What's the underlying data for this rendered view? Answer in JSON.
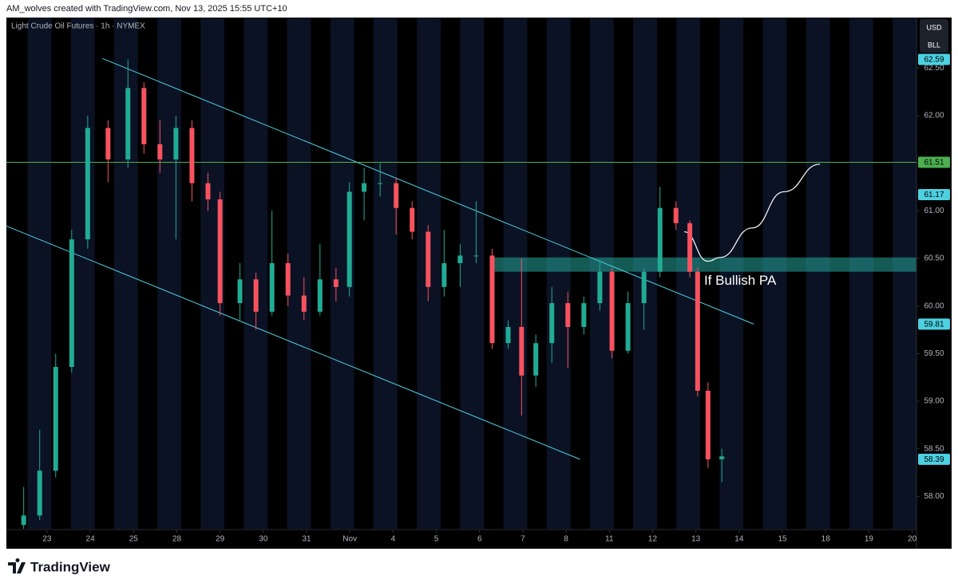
{
  "header": {
    "text": "AM_wolves created with TradingView.com, Nov 13, 2025 15:55 UTC+10"
  },
  "footer": {
    "brand": "TradingView"
  },
  "chart_data": {
    "type": "candlestick",
    "title": "Light Crude Oil Futures · 1h · NYMEX",
    "currency": "USD",
    "unit": "BLL",
    "x": [
      -0.54,
      -0.17,
      0.2,
      0.57,
      0.94,
      1.41,
      1.87,
      2.24,
      2.61,
      2.98,
      3.35,
      3.72,
      4.0,
      4.46,
      4.83,
      5.2,
      5.57,
      5.94,
      6.31,
      6.68,
      6.99,
      7.33,
      7.7,
      8.07,
      8.44,
      8.81,
      9.18,
      9.55,
      9.92,
      10.29,
      10.66,
      10.97,
      11.3,
      11.67,
      12.04,
      12.41,
      12.78,
      13.06,
      13.43,
      13.8,
      14.17,
      14.54,
      14.86,
      15.04,
      15.28,
      15.6
    ],
    "open": [
      57.7,
      57.8,
      58.27,
      59.36,
      60.7,
      61.87,
      61.54,
      62.29,
      61.7,
      61.54,
      61.87,
      61.29,
      61.12,
      60.03,
      60.28,
      59.94,
      60.45,
      60.11,
      59.94,
      60.28,
      60.2,
      61.2,
      61.29,
      61.29,
      61.03,
      60.78,
      60.2,
      60.45,
      60.53,
      60.53,
      59.61,
      59.78,
      59.27,
      59.61,
      60.03,
      59.78,
      60.03,
      60.36,
      59.53,
      60.03,
      60.36,
      61.03,
      60.87,
      60.36,
      59.11,
      58.39
    ],
    "high": [
      58.1,
      58.7,
      59.5,
      60.8,
      62.0,
      61.95,
      62.59,
      62.35,
      61.95,
      62.0,
      61.95,
      61.4,
      61.2,
      60.45,
      60.35,
      61.0,
      60.55,
      60.3,
      60.65,
      60.4,
      61.3,
      61.45,
      61.5,
      61.35,
      61.1,
      60.85,
      60.8,
      60.65,
      61.1,
      60.6,
      59.85,
      60.5,
      59.7,
      60.2,
      60.15,
      60.1,
      60.48,
      60.4,
      60.15,
      60.4,
      61.25,
      61.1,
      60.9,
      60.4,
      59.2,
      58.5
    ],
    "low": [
      57.66,
      57.75,
      58.2,
      59.3,
      60.6,
      61.3,
      61.45,
      61.6,
      61.4,
      60.7,
      61.1,
      61.0,
      59.9,
      59.85,
      59.75,
      59.9,
      60.0,
      59.85,
      59.9,
      60.05,
      60.1,
      60.9,
      61.15,
      60.75,
      60.7,
      60.05,
      60.1,
      60.2,
      60.45,
      59.55,
      59.55,
      58.85,
      59.15,
      59.4,
      59.35,
      59.7,
      59.95,
      59.45,
      59.5,
      59.75,
      60.3,
      60.8,
      60.3,
      59.05,
      58.3,
      58.15
    ],
    "close": [
      57.8,
      58.27,
      59.36,
      60.7,
      61.87,
      61.54,
      62.29,
      61.7,
      61.54,
      61.87,
      61.29,
      61.12,
      60.03,
      60.28,
      59.94,
      60.45,
      60.11,
      59.94,
      60.28,
      60.2,
      61.2,
      61.29,
      61.29,
      61.03,
      60.78,
      60.2,
      60.45,
      60.53,
      60.53,
      59.61,
      59.78,
      59.27,
      59.61,
      60.03,
      59.78,
      60.03,
      60.36,
      59.53,
      60.03,
      60.36,
      61.03,
      60.87,
      60.36,
      59.11,
      58.39,
      58.42
    ],
    "up_color": "#22ab94",
    "down_color": "#f7525f",
    "xlim": [
      -0.94,
      20.1
    ],
    "xticks": [
      {
        "value": 0,
        "label": "23"
      },
      {
        "value": 1,
        "label": "24"
      },
      {
        "value": 2,
        "label": "25"
      },
      {
        "value": 3,
        "label": "28"
      },
      {
        "value": 4,
        "label": "29"
      },
      {
        "value": 5,
        "label": "30"
      },
      {
        "value": 6,
        "label": "31"
      },
      {
        "value": 7,
        "label": "Nov"
      },
      {
        "value": 8,
        "label": "4"
      },
      {
        "value": 9,
        "label": "5"
      },
      {
        "value": 10,
        "label": "6"
      },
      {
        "value": 11,
        "label": "7"
      },
      {
        "value": 12,
        "label": "8"
      },
      {
        "value": 13,
        "label": "11"
      },
      {
        "value": 14,
        "label": "12"
      },
      {
        "value": 15,
        "label": "13"
      },
      {
        "value": 16,
        "label": "14"
      },
      {
        "value": 17,
        "label": "15"
      },
      {
        "value": 18,
        "label": "18"
      },
      {
        "value": 19,
        "label": "19"
      },
      {
        "value": 20,
        "label": "20"
      }
    ],
    "ylim": [
      57.66,
      63.03
    ],
    "yticks": [
      {
        "value": 62.5,
        "label": "62.50"
      },
      {
        "value": 62,
        "label": "62.00"
      },
      {
        "value": 61.5,
        "label": "61.50"
      },
      {
        "value": 61,
        "label": "61.00"
      },
      {
        "value": 60.5,
        "label": "60.50"
      },
      {
        "value": 60,
        "label": "60.00"
      },
      {
        "value": 59.5,
        "label": "59.50"
      },
      {
        "value": 59,
        "label": "59.00"
      },
      {
        "value": 58.5,
        "label": "58.50"
      },
      {
        "value": 58,
        "label": "58.00"
      }
    ],
    "price_labels": [
      {
        "value": 62.59,
        "color": "#4dd0e1"
      },
      {
        "value": 61.51,
        "color": "#4caf50"
      },
      {
        "value": 61.17,
        "color": "#4dd0e1"
      },
      {
        "value": 59.81,
        "color": "#4dd0e1"
      },
      {
        "value": 58.39,
        "color": "#4dd0e1"
      }
    ],
    "drawings": [
      {
        "kind": "zone",
        "color": "#26a69a",
        "x": [
          10.32,
          20.1
        ],
        "y": [
          60.36,
          60.51
        ]
      },
      {
        "kind": "hline",
        "color": "#4caf50",
        "y": [
          61.51
        ]
      },
      {
        "kind": "line",
        "color": "#4dd0e1",
        "x": [
          1.28,
          16.34
        ],
        "y": [
          62.6,
          59.81
        ]
      },
      {
        "kind": "line",
        "color": "#4dd0e1",
        "x": [
          -0.94,
          12.32
        ],
        "y": [
          60.84,
          58.39
        ]
      },
      {
        "kind": "curve",
        "color": "#ffffff",
        "x": [
          14.73,
          15.28,
          15.56,
          16.3,
          17.04,
          17.87
        ],
        "y": [
          60.78,
          60.47,
          60.51,
          60.82,
          61.2,
          61.49
        ]
      }
    ],
    "annotation": {
      "text": "If Bullish PA",
      "x": 15.19,
      "y": 60.26
    }
  }
}
